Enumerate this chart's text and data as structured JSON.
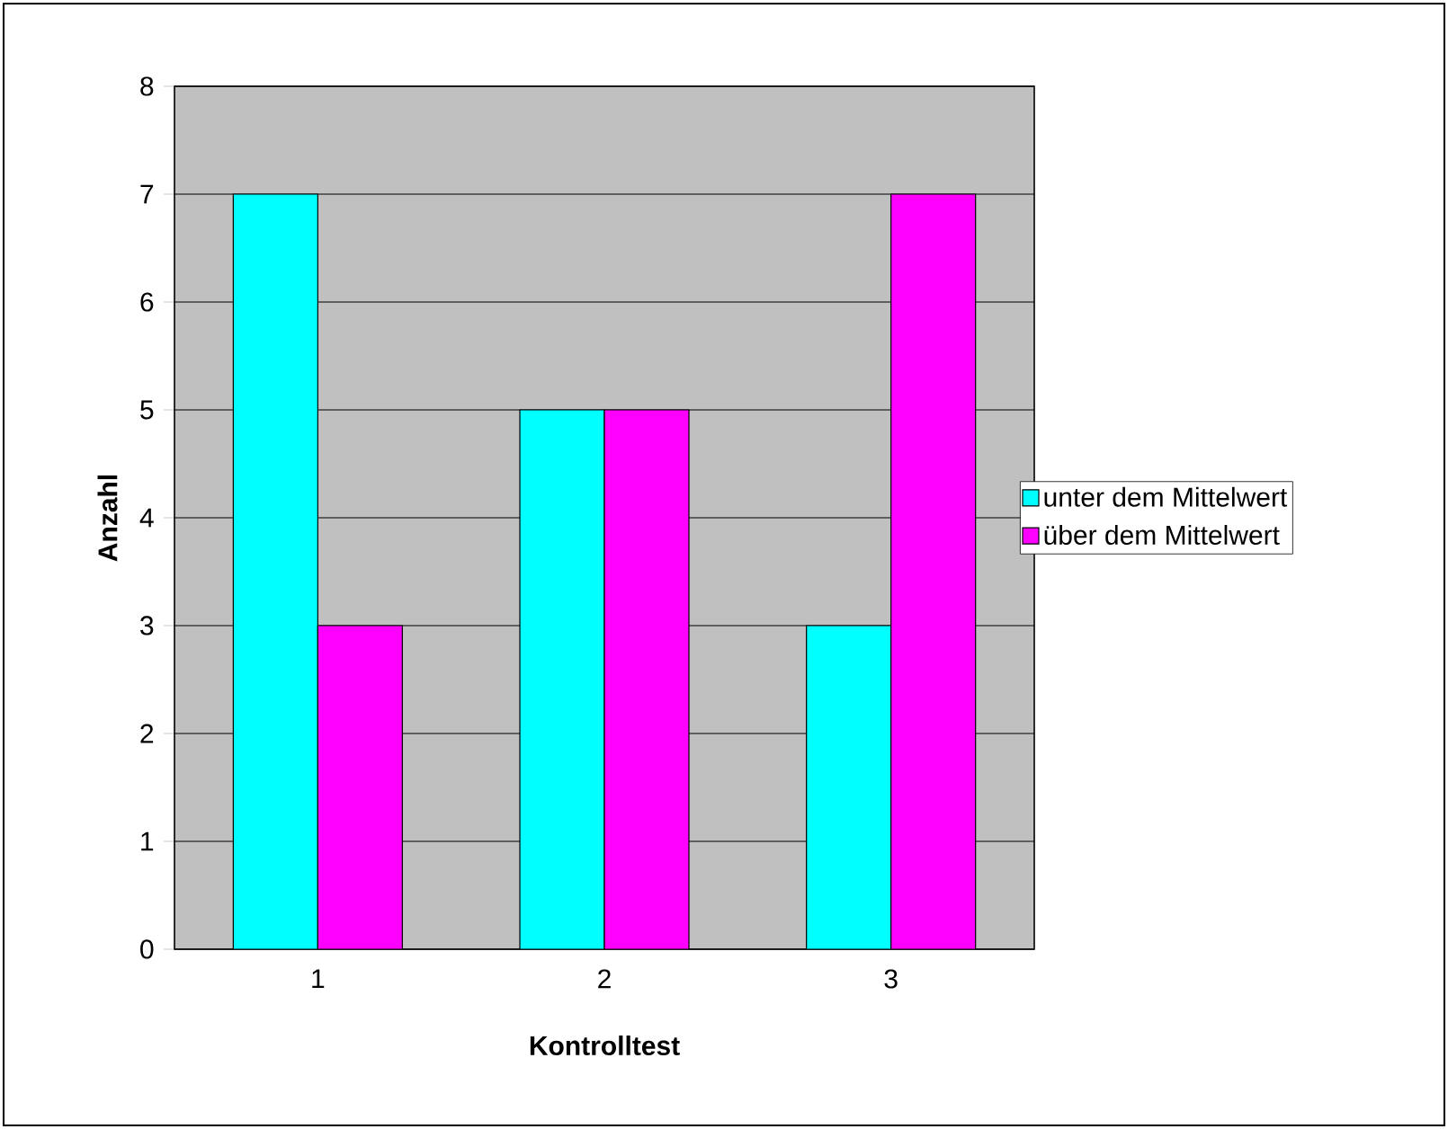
{
  "chart_data": {
    "type": "bar",
    "xlabel": "Kontrolltest",
    "ylabel": "Anzahl",
    "categories": [
      "1",
      "2",
      "3"
    ],
    "series": [
      {
        "name": "unter dem Mittelwert",
        "color": "#00ffff",
        "values": [
          7,
          5,
          3
        ]
      },
      {
        "name": "über dem Mittelwert",
        "color": "#ff00ff",
        "values": [
          3,
          5,
          7
        ]
      }
    ],
    "ylim": [
      0,
      8
    ],
    "yticks": [
      0,
      1,
      2,
      3,
      4,
      5,
      6,
      7,
      8
    ],
    "grid": "y",
    "legend": "right"
  }
}
